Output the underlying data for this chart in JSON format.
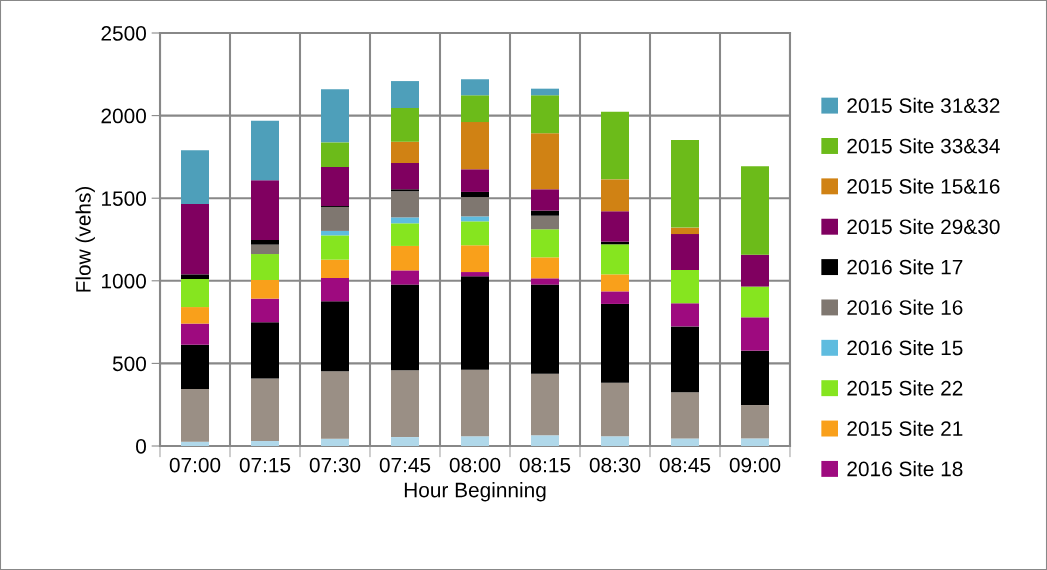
{
  "chart_data": {
    "type": "bar",
    "stacked": true,
    "xlabel": "Hour Beginning",
    "ylabel": "Flow (vehs)",
    "categories": [
      "07:00",
      "07:15",
      "07:30",
      "07:45",
      "08:00",
      "08:15",
      "08:30",
      "08:45",
      "09:00"
    ],
    "ylim": [
      0,
      2500
    ],
    "yticks": [
      0,
      500,
      1000,
      1500,
      2000,
      2500
    ],
    "grid": true,
    "legend": "right",
    "series": [
      {
        "color": "#b0d8ea",
        "values": [
          26,
          30,
          44,
          54,
          59,
          65,
          59,
          46,
          46
        ]
      },
      {
        "color": "#9a8f85",
        "values": [
          319,
          378,
          408,
          404,
          403,
          373,
          324,
          279,
          202
        ]
      },
      {
        "color": "#000000",
        "values": [
          268,
          341,
          424,
          519,
          565,
          539,
          477,
          399,
          329
        ]
      },
      {
        "name": "2016 Site 18",
        "color": "#9e0a7f",
        "values": [
          128,
          143,
          141,
          86,
          26,
          38,
          76,
          140,
          202
        ]
      },
      {
        "name": "2015 Site 21",
        "color": "#f9a01b",
        "values": [
          100,
          113,
          111,
          148,
          162,
          127,
          103,
          0,
          0
        ]
      },
      {
        "name": "2015 Site 22",
        "color": "#86e51f",
        "values": [
          170,
          157,
          147,
          137,
          145,
          170,
          182,
          201,
          186
        ]
      },
      {
        "name": "2016 Site 15",
        "color": "#5fbcdf",
        "values": [
          0,
          0,
          27,
          36,
          30,
          0,
          0,
          0,
          0
        ]
      },
      {
        "name": "2016 Site 16",
        "color": "#7f7770",
        "values": [
          0,
          57,
          145,
          158,
          117,
          82,
          0,
          0,
          0
        ]
      },
      {
        "name": "2016 Site 17",
        "color": "#000000",
        "values": [
          28,
          28,
          6,
          12,
          31,
          31,
          16,
          0,
          0
        ]
      },
      {
        "name": "2015 Site 29&30",
        "color": "#800060",
        "values": [
          426,
          361,
          236,
          159,
          137,
          129,
          184,
          218,
          193
        ]
      },
      {
        "name": "2015 Site 15&16",
        "color": "#d08214",
        "values": [
          0,
          0,
          0,
          129,
          286,
          339,
          193,
          39,
          0
        ]
      },
      {
        "name": "2015 Site 33&34",
        "color": "#6cbb1a",
        "values": [
          0,
          0,
          149,
          204,
          162,
          230,
          410,
          530,
          535
        ]
      },
      {
        "name": "2015 Site 31&32",
        "color": "#4e9fba",
        "values": [
          325,
          361,
          321,
          163,
          97,
          40,
          0,
          0,
          0
        ]
      }
    ]
  }
}
